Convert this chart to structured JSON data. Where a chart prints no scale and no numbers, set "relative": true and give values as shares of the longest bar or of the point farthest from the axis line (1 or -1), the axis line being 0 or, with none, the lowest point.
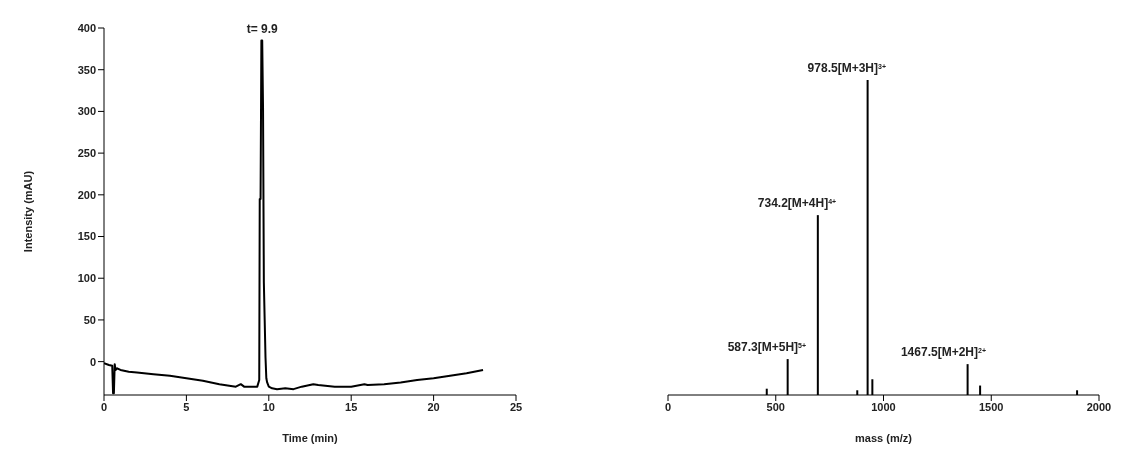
{
  "chart_data": [
    {
      "type": "line",
      "xlabel": "Time (min)",
      "ylabel": "Intensity (mAU)",
      "xlim": [
        0,
        25
      ],
      "xticks": [
        0,
        5,
        10,
        15,
        20,
        25
      ],
      "ylim": [
        -40,
        400
      ],
      "yticks": [
        0,
        50,
        100,
        150,
        200,
        250,
        300,
        350,
        400
      ],
      "annotations": [
        {
          "text": "t= 9.9",
          "x": 9.6,
          "y": 385
        }
      ],
      "series": [
        {
          "color": "#000000",
          "x": [
            0,
            0.3,
            0.5,
            0.55,
            0.6,
            0.65,
            0.7,
            0.8,
            1,
            1.5,
            2,
            3,
            4,
            5,
            6,
            7,
            8,
            8.3,
            8.5,
            9,
            9.3,
            9.42,
            9.45,
            9.5,
            9.55,
            9.6,
            9.65,
            9.7,
            9.75,
            9.8,
            9.85,
            9.9,
            10,
            10.2,
            10.5,
            11,
            11.5,
            12,
            12.7,
            13,
            14,
            15,
            15.8,
            16,
            17,
            18,
            19,
            20,
            21,
            22,
            23
          ],
          "values": [
            -2,
            -4,
            -5,
            -38,
            -38,
            -3,
            -10,
            -8,
            -10,
            -12,
            -13,
            -15,
            -17,
            -20,
            -23,
            -27,
            -30,
            -27,
            -30,
            -30,
            -30,
            -22,
            195,
            195,
            385,
            385,
            305,
            95,
            50,
            5,
            -20,
            -25,
            -30,
            -32,
            -33,
            -32,
            -33,
            -30,
            -27,
            -28,
            -30,
            -30,
            -27,
            -28,
            -27,
            -25,
            -22,
            -20,
            -17,
            -14,
            -10
          ]
        }
      ]
    },
    {
      "type": "bar",
      "relative": true,
      "xlabel": "mass (m/z)",
      "xlim": [
        0,
        2000
      ],
      "xticks": [
        0,
        500,
        1000,
        1500,
        2000
      ],
      "annotations": [
        {
          "text": "978.5[M+3H]$^{3+}$",
          "x": 928,
          "y": 1
        },
        {
          "text": "734.2[M+4H]$^{4+}$",
          "x": 697,
          "y": 0.571
        },
        {
          "text": "587.3[M+5H]$^{5+}$",
          "x": 557,
          "y": 0.114
        },
        {
          "text": "1467.5[M+2H]$^{2+}$",
          "x": 1392,
          "y": 0.098
        }
      ],
      "series": [
        {
          "color": "#000000",
          "x": [
            460,
            557,
            697,
            880,
            928,
            950,
            1392,
            1450,
            1900
          ],
          "values": [
            0.02,
            0.114,
            0.571,
            0.015,
            1,
            0.05,
            0.098,
            0.03,
            0.015
          ]
        }
      ]
    }
  ]
}
